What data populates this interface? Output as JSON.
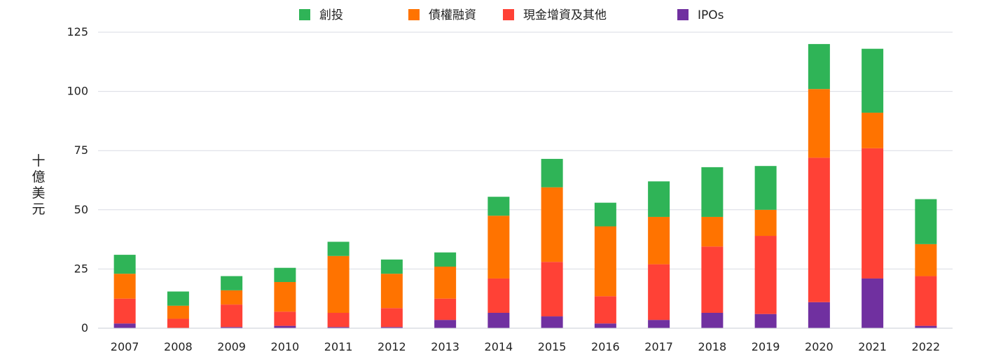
{
  "chart_data": {
    "type": "bar",
    "stacked": true,
    "ylabel": "十億美元",
    "ylim": [
      0,
      125
    ],
    "yticks": [
      0,
      25,
      50,
      75,
      100,
      125
    ],
    "grid": true,
    "legend_position": "top",
    "categories": [
      "2007",
      "2008",
      "2009",
      "2010",
      "2011",
      "2012",
      "2013",
      "2014",
      "2015",
      "2016",
      "2017",
      "2018",
      "2019",
      "2020",
      "2021",
      "2022"
    ],
    "series": [
      {
        "name": "IPOs",
        "color": "#7030a0",
        "values": [
          2,
          0,
          0.5,
          1,
          0.5,
          0.5,
          3.5,
          6.5,
          5,
          2,
          3.5,
          6.5,
          6,
          11,
          21,
          1
        ]
      },
      {
        "name": "現金增資及其他",
        "color": "#ff4136",
        "values": [
          10.5,
          4,
          9.5,
          6,
          6,
          8,
          9,
          14.5,
          23,
          11.5,
          23.5,
          28,
          33,
          61,
          55,
          21
        ]
      },
      {
        "name": "債權融資",
        "color": "#ff7300",
        "values": [
          10.5,
          5.5,
          6,
          12.5,
          24,
          14.5,
          13.5,
          26.5,
          31.5,
          29.5,
          20,
          12.5,
          11,
          29,
          15,
          13.5
        ]
      },
      {
        "name": "創投",
        "color": "#2fb457",
        "values": [
          8,
          6,
          6,
          6,
          6,
          6,
          6,
          8,
          12,
          10,
          15,
          21,
          18.5,
          19,
          27,
          19
        ]
      }
    ],
    "legend_order": [
      "創投",
      "債權融資",
      "現金增資及其他",
      "IPOs"
    ]
  }
}
